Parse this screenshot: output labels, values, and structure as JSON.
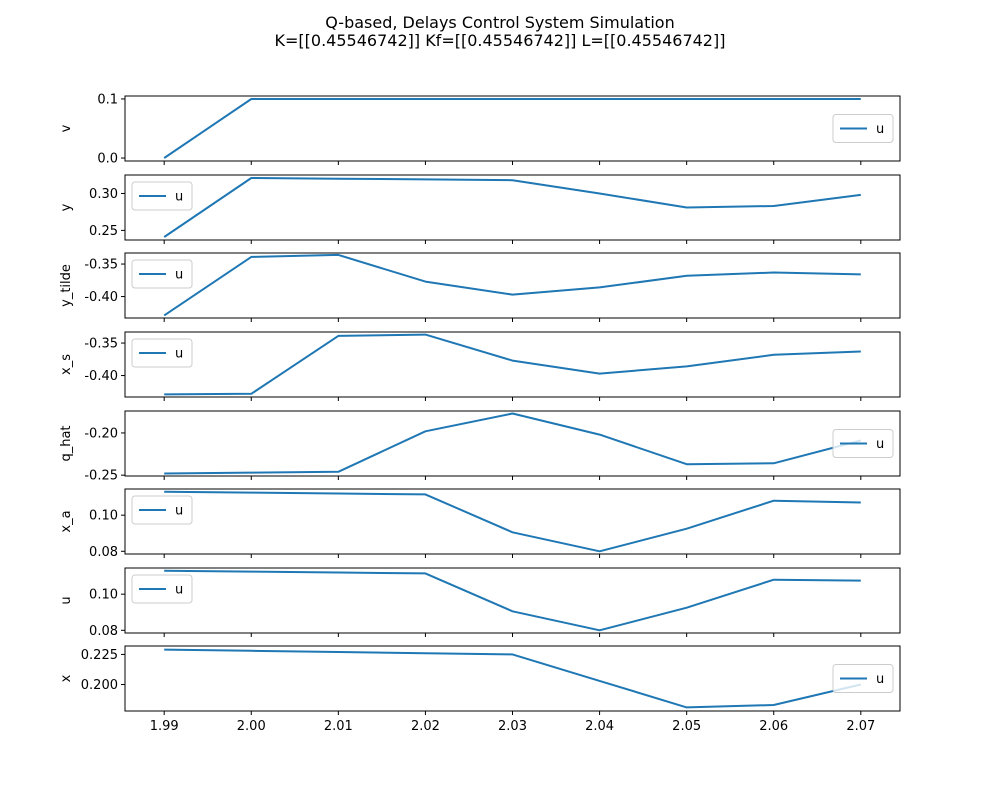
{
  "figure": {
    "title_line1": "Q-based, Delays Control System Simulation",
    "title_line2": "K=[[0.45546742]] Kf=[[0.45546742]] L=[[0.45546742]]"
  },
  "colors": {
    "series": "#1f77b4"
  },
  "chart_data": [
    {
      "type": "line",
      "ylabel": "v",
      "x": [
        1.99,
        2.0,
        2.01,
        2.02,
        2.03,
        2.04,
        2.05,
        2.06,
        2.07
      ],
      "series": [
        {
          "name": "u",
          "values": [
            0.0,
            0.1,
            0.1,
            0.1,
            0.1,
            0.1,
            0.1,
            0.1,
            0.1
          ]
        }
      ],
      "ylim": [
        -0.005,
        0.105
      ],
      "yticks": [
        0.0,
        0.1
      ],
      "ytick_labels": [
        "0.0",
        "0.1"
      ],
      "legend": "right",
      "show_xticklabels": false
    },
    {
      "type": "line",
      "ylabel": "y",
      "x": [
        1.99,
        2.0,
        2.01,
        2.02,
        2.03,
        2.04,
        2.05,
        2.06,
        2.07
      ],
      "series": [
        {
          "name": "u",
          "values": [
            0.241,
            0.321,
            0.32,
            0.319,
            0.318,
            0.3,
            0.281,
            0.283,
            0.298
          ]
        }
      ],
      "ylim": [
        0.237,
        0.325
      ],
      "yticks": [
        0.25,
        0.3
      ],
      "ytick_labels": [
        "0.25",
        "0.30"
      ],
      "legend": "upper left",
      "show_xticklabels": false
    },
    {
      "type": "line",
      "ylabel": "y_tilde",
      "x": [
        1.99,
        2.0,
        2.01,
        2.02,
        2.03,
        2.04,
        2.05,
        2.06,
        2.07
      ],
      "series": [
        {
          "name": "u",
          "values": [
            -0.429,
            -0.339,
            -0.336,
            -0.377,
            -0.397,
            -0.386,
            -0.368,
            -0.363,
            -0.366
          ]
        }
      ],
      "ylim": [
        -0.433,
        -0.333
      ],
      "yticks": [
        -0.4,
        -0.35
      ],
      "ytick_labels": [
        "-0.40",
        "-0.35"
      ],
      "legend": "upper left",
      "show_xticklabels": false
    },
    {
      "type": "line",
      "ylabel": "x_s",
      "x": [
        1.99,
        2.0,
        2.01,
        2.02,
        2.03,
        2.04,
        2.05,
        2.06,
        2.07
      ],
      "series": [
        {
          "name": "u",
          "values": [
            -0.429,
            -0.428,
            -0.339,
            -0.337,
            -0.377,
            -0.397,
            -0.386,
            -0.368,
            -0.363
          ]
        }
      ],
      "ylim": [
        -0.433,
        -0.333
      ],
      "yticks": [
        -0.4,
        -0.35
      ],
      "ytick_labels": [
        "-0.40",
        "-0.35"
      ],
      "legend": "upper left",
      "show_xticklabels": false
    },
    {
      "type": "line",
      "ylabel": "q_hat",
      "x": [
        1.99,
        2.0,
        2.01,
        2.02,
        2.03,
        2.04,
        2.05,
        2.06,
        2.07
      ],
      "series": [
        {
          "name": "u",
          "values": [
            -0.248,
            -0.247,
            -0.246,
            -0.198,
            -0.177,
            -0.202,
            -0.237,
            -0.236,
            -0.209
          ]
        }
      ],
      "ylim": [
        -0.251,
        -0.174
      ],
      "yticks": [
        -0.25,
        -0.2
      ],
      "ytick_labels": [
        "-0.25",
        "-0.20"
      ],
      "legend": "right",
      "show_xticklabels": false
    },
    {
      "type": "line",
      "ylabel": "x_a",
      "x": [
        1.99,
        2.0,
        2.01,
        2.02,
        2.03,
        2.04,
        2.05,
        2.06,
        2.07
      ],
      "series": [
        {
          "name": "u",
          "values": [
            0.113,
            0.1125,
            0.112,
            0.1115,
            0.0905,
            0.08,
            0.0925,
            0.108,
            0.107
          ]
        }
      ],
      "ylim": [
        0.0785,
        0.1145
      ],
      "yticks": [
        0.08,
        0.1
      ],
      "ytick_labels": [
        "0.08",
        "0.10"
      ],
      "legend": "upper left",
      "show_xticklabels": false
    },
    {
      "type": "line",
      "ylabel": "u",
      "x": [
        1.99,
        2.0,
        2.01,
        2.02,
        2.03,
        2.04,
        2.05,
        2.06,
        2.07
      ],
      "series": [
        {
          "name": "u",
          "values": [
            0.113,
            0.1125,
            0.112,
            0.1115,
            0.0905,
            0.08,
            0.0925,
            0.108,
            0.1075
          ]
        }
      ],
      "ylim": [
        0.0785,
        0.1145
      ],
      "yticks": [
        0.08,
        0.1
      ],
      "ytick_labels": [
        "0.08",
        "0.10"
      ],
      "legend": "upper left",
      "show_xticklabels": false
    },
    {
      "type": "line",
      "ylabel": "x",
      "x": [
        1.99,
        2.0,
        2.01,
        2.02,
        2.03,
        2.04,
        2.05,
        2.06,
        2.07
      ],
      "series": [
        {
          "name": "u",
          "values": [
            0.229,
            0.228,
            0.227,
            0.226,
            0.225,
            0.203,
            0.181,
            0.183,
            0.2
          ]
        }
      ],
      "ylim": [
        0.178,
        0.232
      ],
      "yticks": [
        0.2,
        0.225
      ],
      "ytick_labels": [
        "0.200",
        "0.225"
      ],
      "legend": "right",
      "show_xticklabels": true,
      "xticks": [
        1.99,
        2.0,
        2.01,
        2.02,
        2.03,
        2.04,
        2.05,
        2.06,
        2.07
      ],
      "xtick_labels": [
        "1.99",
        "2.00",
        "2.01",
        "2.02",
        "2.03",
        "2.04",
        "2.05",
        "2.06",
        "2.07"
      ]
    }
  ]
}
